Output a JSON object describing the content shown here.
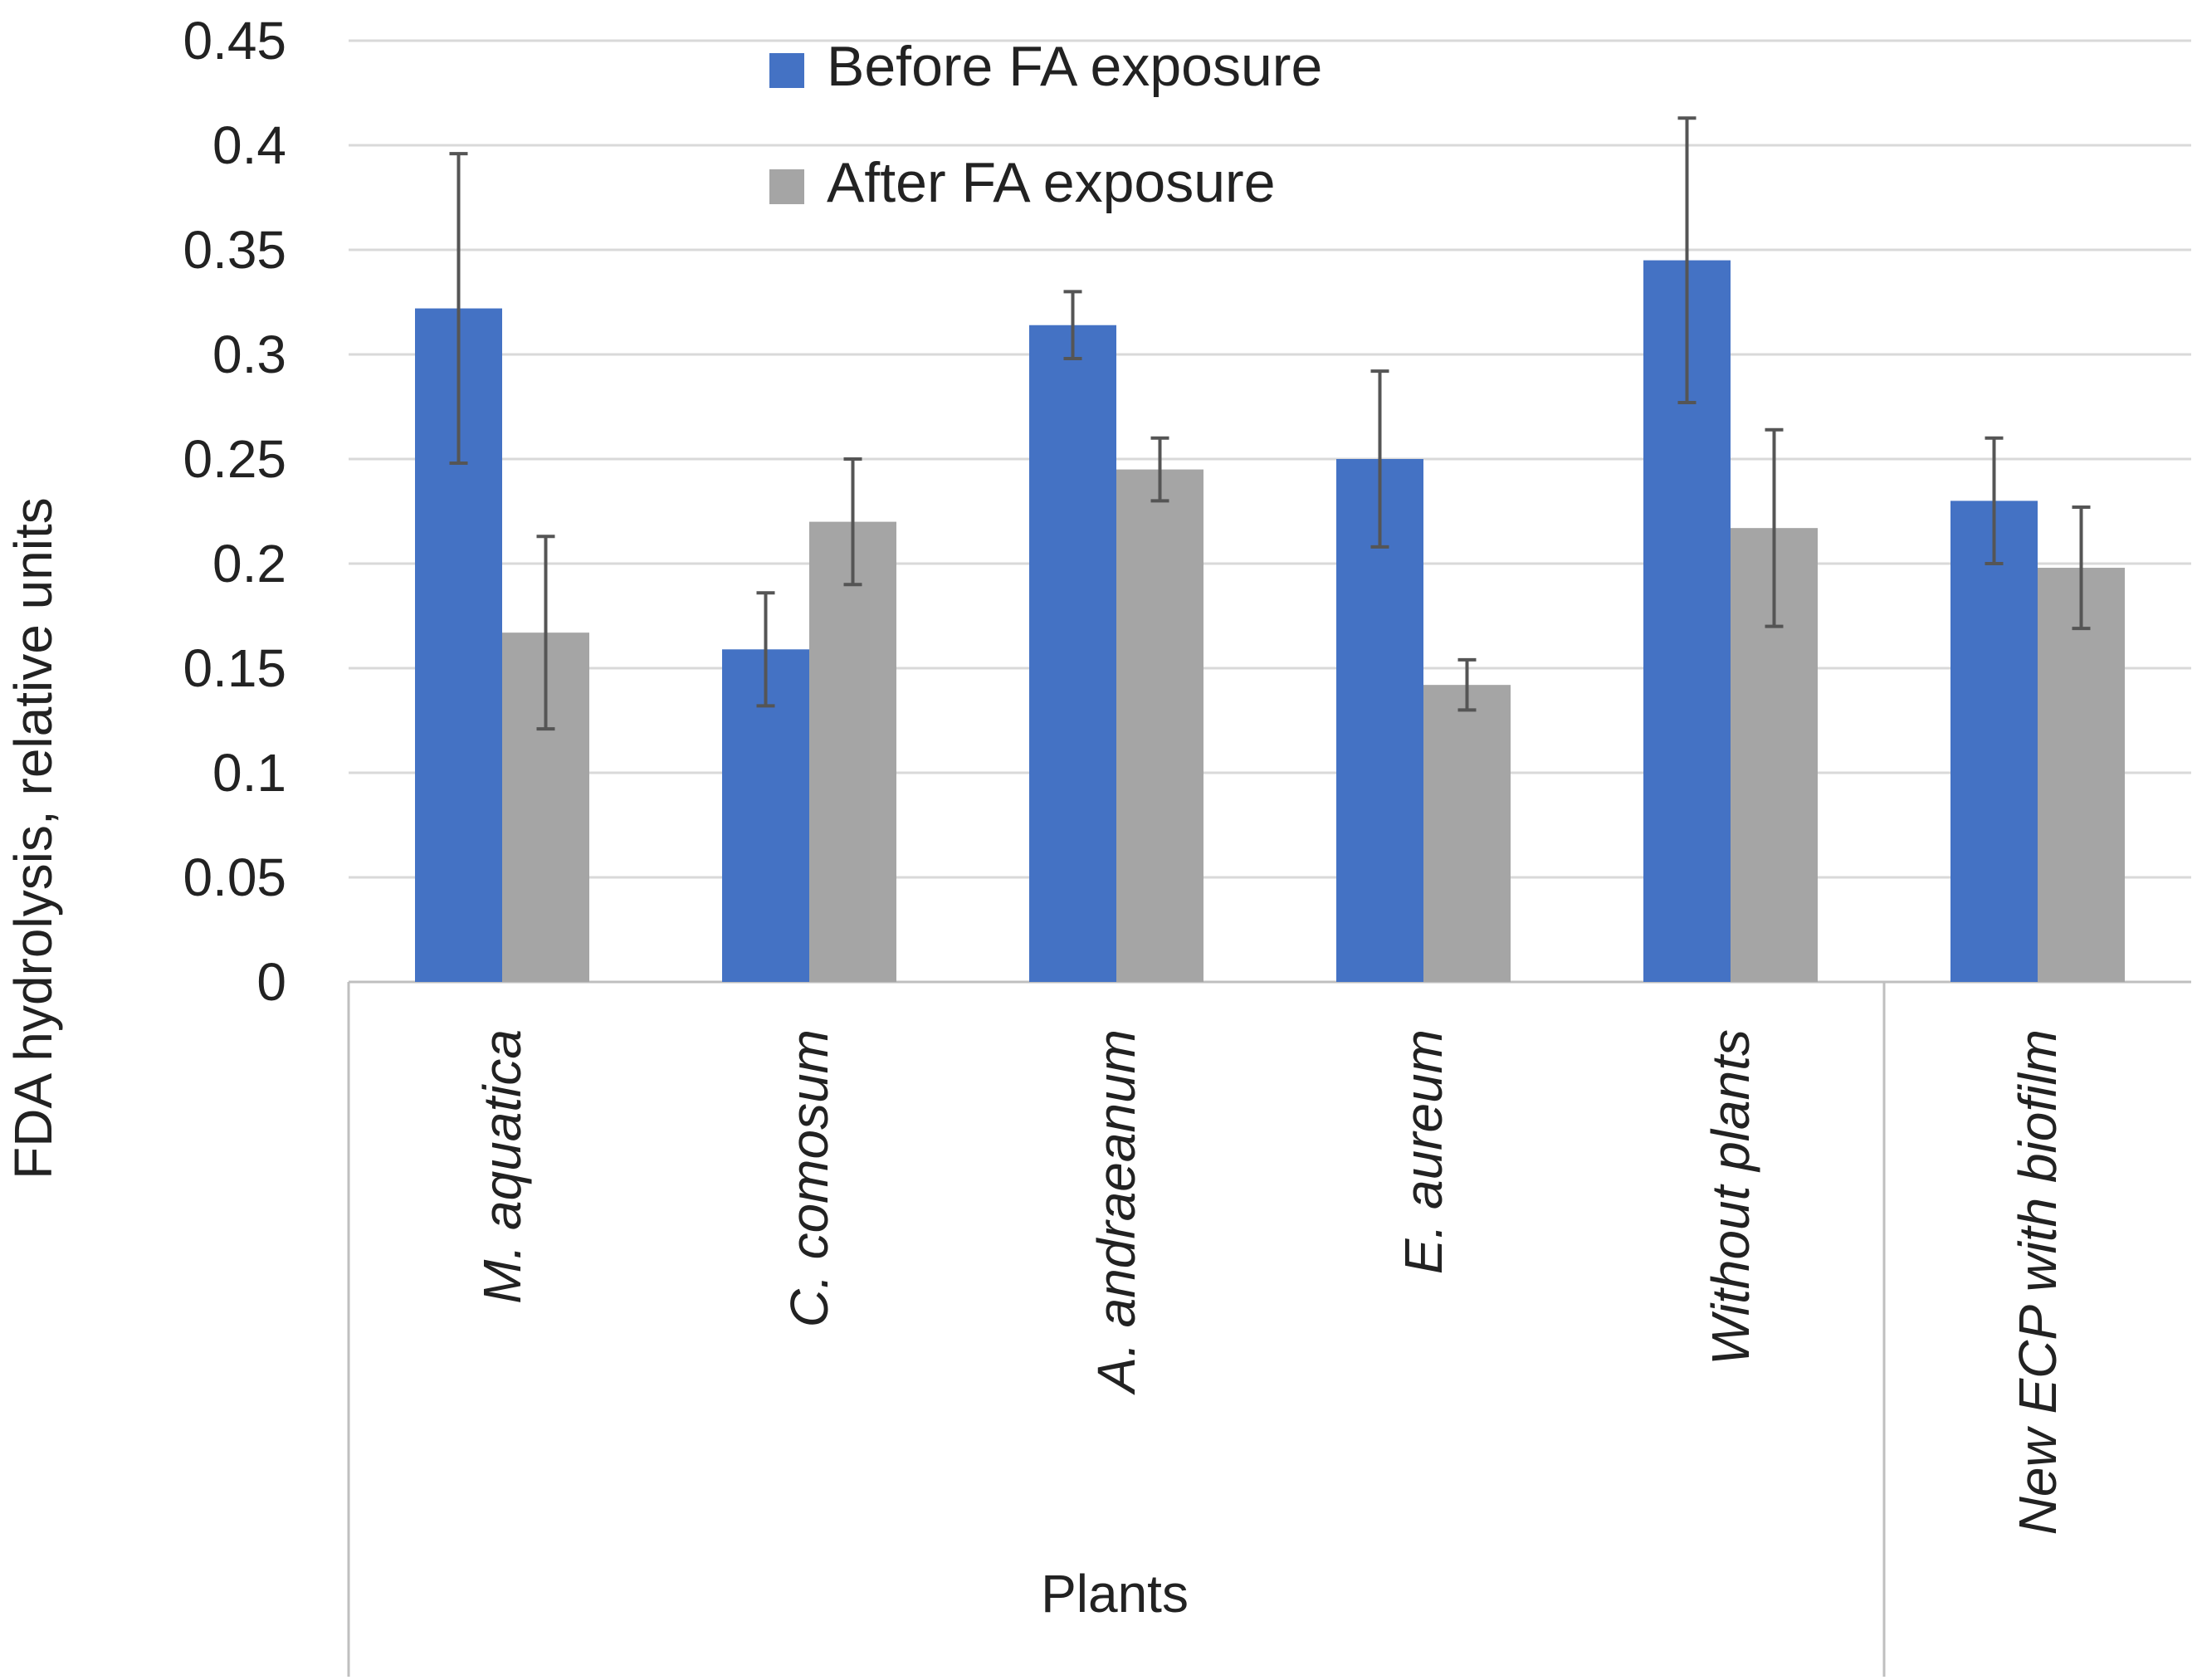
{
  "chart_data": {
    "type": "bar",
    "title": "",
    "ylabel": "FDA hydrolysis, relative units",
    "xlabel": "",
    "ylim": [
      0,
      0.45
    ],
    "yticks": [
      0,
      0.05,
      0.1,
      0.15,
      0.2,
      0.25,
      0.3,
      0.35,
      0.4,
      0.45
    ],
    "ytick_labels": [
      "0",
      "0.05",
      "0.1",
      "0.15",
      "0.2",
      "0.25",
      "0.3",
      "0.35",
      "0.4",
      "0.45"
    ],
    "grid": true,
    "legend_position": "top-center",
    "categories": [
      "M. aquatica",
      "C. comosum",
      "A. andraeanum",
      "E. aureum",
      "Without plants",
      "New ECP with biofilm"
    ],
    "category_groups": [
      {
        "label": "Plants",
        "categories": [
          "M. aquatica",
          "C. comosum",
          "A. andraeanum",
          "E. aureum",
          "Without plants"
        ]
      },
      {
        "label": "",
        "categories": [
          "New ECP with biofilm"
        ]
      }
    ],
    "series": [
      {
        "name": "Before FA exposure",
        "color": "#4472c4",
        "values": [
          0.322,
          0.159,
          0.314,
          0.25,
          0.345,
          0.23
        ],
        "error": [
          0.074,
          0.027,
          0.016,
          0.042,
          0.068,
          0.03
        ]
      },
      {
        "name": "After FA exposure",
        "color": "#a5a5a5",
        "values": [
          0.167,
          0.22,
          0.245,
          0.142,
          0.217,
          0.198
        ],
        "error": [
          0.046,
          0.03,
          0.015,
          0.012,
          0.047,
          0.029
        ]
      }
    ]
  }
}
